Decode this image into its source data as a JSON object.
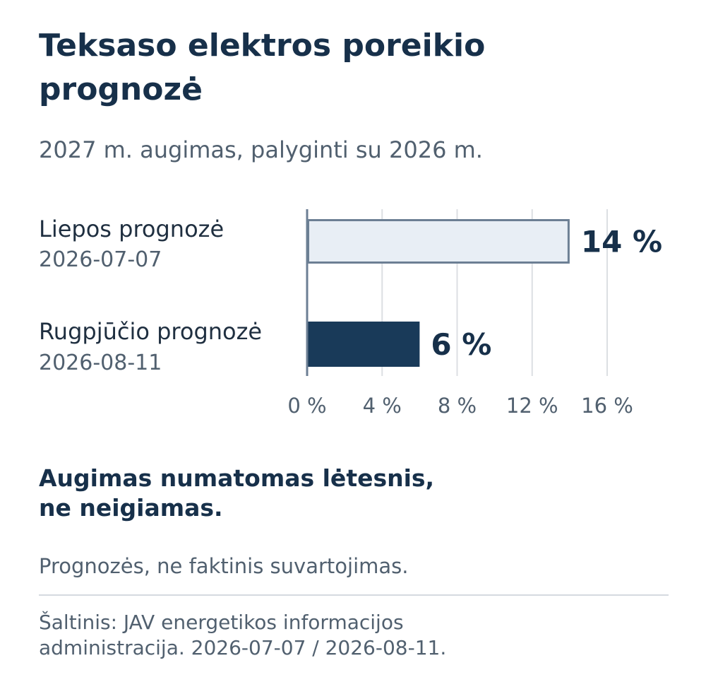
{
  "title_line1": "Teksaso elektros poreikio",
  "title_line2": "prognozė",
  "subtitle": "2027 m. augimas, palyginti su 2026 m.",
  "chart_data": {
    "type": "bar",
    "orientation": "horizontal",
    "categories": [
      "Liepos prognozė",
      "Rugpjūčio prognozė"
    ],
    "category_dates": [
      "2026-07-07",
      "2026-08-11"
    ],
    "values": [
      14,
      6
    ],
    "value_labels": [
      "14 %",
      "6 %"
    ],
    "xlim": [
      0,
      16
    ],
    "x_ticks": [
      0,
      4,
      8,
      12,
      16
    ],
    "x_tick_labels": [
      "0 %",
      "4 %",
      "8 %",
      "12 %",
      "16 %"
    ],
    "grid": true,
    "colors": {
      "bar_light_fill": "#e8eef5",
      "bar_light_stroke": "#6c7f94",
      "bar_dark_fill": "#193a59",
      "grid": "#dcdfe3",
      "axis": "#6c7f94",
      "value_text": "#17304a",
      "tick_text": "#51606f"
    }
  },
  "headline_line1": "Augimas numatomas lėtesnis,",
  "headline_line2": "ne neigiamas.",
  "note": "Prognozės, ne faktinis suvartojimas.",
  "source_line1": "Šaltinis: JAV energetikos informacijos",
  "source_line2": "administracija. 2026-07-07 / 2026-08-11."
}
